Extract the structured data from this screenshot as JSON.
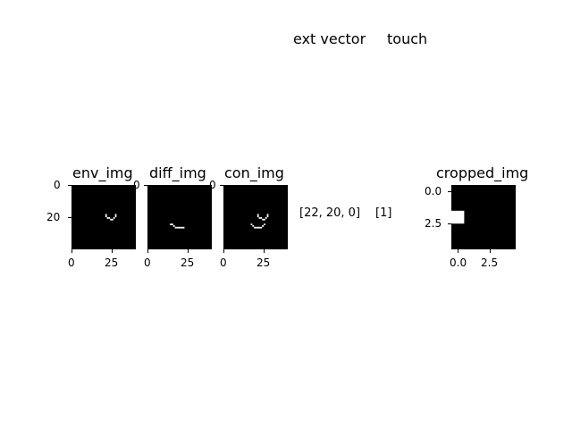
{
  "chart_data": [
    {
      "type": "heatmap",
      "title": "env_img",
      "x_ticks": [
        "0",
        "25"
      ],
      "y_ticks": [
        "0",
        "20"
      ],
      "grid_size": [
        40,
        40
      ],
      "lit_pixels": [
        [
          18,
          21
        ],
        [
          19,
          21
        ],
        [
          20,
          22
        ],
        [
          20,
          23
        ],
        [
          21,
          24
        ],
        [
          21,
          25
        ],
        [
          20,
          26
        ],
        [
          19,
          27
        ],
        [
          18,
          27
        ]
      ]
    },
    {
      "type": "heatmap",
      "title": "diff_img",
      "x_ticks": [
        "0",
        "25"
      ],
      "y_ticks": [
        "0"
      ],
      "grid_size": [
        40,
        40
      ],
      "lit_pixels": [
        [
          24,
          14
        ],
        [
          24,
          15
        ],
        [
          25,
          16
        ],
        [
          26,
          17
        ],
        [
          26,
          18
        ],
        [
          26,
          19
        ],
        [
          26,
          20
        ],
        [
          26,
          21
        ],
        [
          26,
          22
        ]
      ]
    },
    {
      "type": "heatmap",
      "title": "con_img",
      "x_ticks": [
        "0",
        "25"
      ],
      "y_ticks": [
        "0"
      ],
      "grid_size": [
        40,
        40
      ],
      "lit_pixels": [
        [
          18,
          21
        ],
        [
          19,
          21
        ],
        [
          20,
          22
        ],
        [
          20,
          23
        ],
        [
          21,
          24
        ],
        [
          21,
          25
        ],
        [
          20,
          26
        ],
        [
          19,
          27
        ],
        [
          18,
          27
        ],
        [
          24,
          17
        ],
        [
          25,
          18
        ],
        [
          26,
          19
        ],
        [
          26,
          20
        ],
        [
          26,
          21
        ],
        [
          26,
          22
        ],
        [
          26,
          23
        ],
        [
          25,
          24
        ],
        [
          24,
          25
        ]
      ]
    },
    {
      "type": "heatmap",
      "title": "cropped_img",
      "x_ticks": [
        "0.0",
        "2.5"
      ],
      "y_ticks": [
        "0.0",
        "2.5"
      ],
      "grid_size": [
        5,
        5
      ],
      "lit_pixels": [
        [
          2,
          0
        ]
      ]
    }
  ],
  "header": {
    "ext_vector": "ext vector",
    "touch": "touch"
  },
  "values": {
    "ext_vector": "[22, 20, 0]",
    "touch": "[1]"
  },
  "colors": {
    "background": "#000000",
    "pixel_on": "#ffffff"
  }
}
